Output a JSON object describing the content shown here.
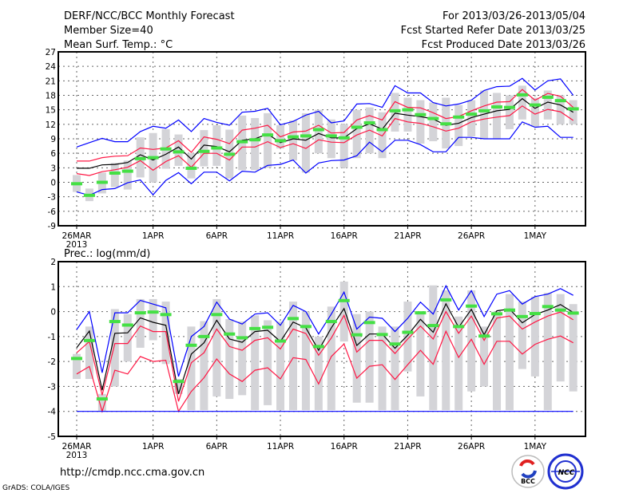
{
  "header": {
    "title": "DERF/NCC/BCC Monthly Forecast",
    "member_size": "Member Size=40",
    "variable": "Mean Surf. Temp.: °C",
    "period": "For 2013/03/26-2013/05/04",
    "started": "Fcst Started Refer Date 2013/03/25",
    "produced": "Fcst Produced Date 2013/03/26"
  },
  "footer": {
    "url": "http://cmdp.ncc.cma.gov.cn",
    "credit": "GrADS: COLA/IGES",
    "logo_bcc": "BCC",
    "logo_ncc": "NCC"
  },
  "colors": {
    "max_min": "#0000ff",
    "spread": "#ff1744",
    "mean": "#000000",
    "obs": "#44e044",
    "range": "#d4d4d8"
  },
  "chart_data": [
    {
      "type": "line",
      "title": "Mean Surf. Temp.: °C",
      "ylim": [
        -9,
        27
      ],
      "yticks": [
        27,
        24,
        21,
        18,
        15,
        12,
        9,
        6,
        3,
        0,
        -3,
        -6,
        -9
      ],
      "xtick_days": [
        0,
        6,
        11,
        16,
        21,
        26,
        31,
        36
      ],
      "xtick_labels": [
        "26MAR",
        "1APR",
        "6APR",
        "11APR",
        "16APR",
        "21APR",
        "26APR",
        "1MAY"
      ],
      "year_label": "2013",
      "days": 40,
      "grid": true,
      "series": [
        {
          "name": "ensemble max",
          "color": "#0000ff",
          "values": [
            7.3,
            8.2,
            9.1,
            8.4,
            8.4,
            10.5,
            11.6,
            11.2,
            12.9,
            10.5,
            13.2,
            12.4,
            11.8,
            14.5,
            14.7,
            15.3,
            11.9,
            12.6,
            13.9,
            14.7,
            12.3,
            12.7,
            16.2,
            16.3,
            15.5,
            20,
            18.5,
            18.5,
            16.5,
            15.8,
            16.2,
            17,
            19,
            19.8,
            19.9,
            21.5,
            19.1,
            21,
            21.4,
            18
          ]
        },
        {
          "name": "upper spread",
          "color": "#ff1744",
          "values": [
            4.4,
            4.4,
            5.1,
            5.4,
            5.5,
            7.1,
            6.8,
            7.1,
            8.6,
            6.2,
            9.4,
            8.9,
            8,
            10.8,
            11.2,
            11.8,
            9.4,
            10.4,
            10.6,
            11.8,
            10.2,
            10.3,
            12.9,
            13.8,
            12.9,
            16.7,
            15.5,
            15.4,
            14.4,
            13.2,
            13.6,
            14.8,
            15.8,
            16.6,
            16.7,
            19.2,
            17,
            18.4,
            17.8,
            15.5
          ]
        },
        {
          "name": "ensemble mean",
          "color": "#000000",
          "values": [
            2.9,
            2.9,
            3.6,
            3.7,
            4.1,
            5.7,
            4.6,
            5.8,
            7.3,
            4.8,
            7.7,
            7.4,
            6.3,
            8.7,
            9,
            10,
            8.2,
            9,
            8.7,
            10.1,
            9.2,
            9.2,
            11.1,
            12.1,
            11,
            14.3,
            13.9,
            13.6,
            13.1,
            11.8,
            12.2,
            13.4,
            14.1,
            14.8,
            15.1,
            17.3,
            15.3,
            16.6,
            16,
            14.5
          ]
        },
        {
          "name": "lower spread",
          "color": "#ff1744",
          "values": [
            1.8,
            1.4,
            2.2,
            2.6,
            3.1,
            4.5,
            2.5,
            4.3,
            5.5,
            3.1,
            6,
            6,
            4.6,
            7.3,
            7.3,
            8.4,
            7.2,
            8,
            7,
            8.8,
            8.3,
            8.2,
            9.8,
            10.8,
            9.6,
            13.2,
            12.5,
            12.2,
            11.5,
            10.6,
            11.2,
            12.5,
            13.1,
            13.5,
            13.8,
            15.8,
            14.1,
            15.1,
            14.6,
            12.8
          ]
        },
        {
          "name": "ensemble min",
          "color": "#0000ff",
          "values": [
            -2,
            -2.7,
            -1.5,
            -1.3,
            -0.1,
            0.5,
            -2.6,
            0.4,
            2,
            -0.3,
            2.1,
            2.1,
            0.3,
            2.3,
            2.1,
            3.5,
            3.7,
            4.6,
            1.9,
            4,
            4.5,
            4.6,
            5.5,
            8.3,
            6.3,
            8.7,
            8.7,
            7.8,
            6.3,
            6.3,
            9.3,
            9.3,
            9,
            9,
            9,
            12.5,
            11.4,
            11.6,
            9.3,
            9.3
          ]
        }
      ],
      "observed": [
        -0.3,
        -2.7,
        0,
        1.9,
        2.3,
        4.9,
        5.1,
        6.9,
        6.3,
        2.9,
        6.4,
        7.1,
        5.8,
        8.4,
        8.8,
        9.8,
        8.6,
        9.4,
        9.6,
        10.9,
        9.6,
        9.2,
        11.4,
        12.3,
        10.9,
        14.8,
        15,
        14,
        13.2,
        12.1,
        13.5,
        14.1,
        14.8,
        15.6,
        15.5,
        18.1,
        16,
        17.6,
        16.9,
        15.2
      ],
      "range_low": [
        -2,
        -3.9,
        -2.3,
        -1,
        -1.5,
        1,
        0,
        2.8,
        3.4,
        0.8,
        3.3,
        3.4,
        0.8,
        2.5,
        2.5,
        3,
        7,
        4.5,
        2,
        6,
        5,
        3,
        5,
        6,
        5,
        10.5,
        10.5,
        8,
        8.5,
        7,
        7.5,
        9.5,
        9,
        9,
        11,
        13,
        11.5,
        13,
        12,
        12
      ],
      "range_high": [
        1.5,
        -1.3,
        2,
        4,
        4.5,
        9.3,
        10.2,
        11,
        9.9,
        6,
        10.8,
        11.8,
        10.9,
        13.8,
        13.3,
        14.3,
        11.8,
        12.8,
        14.3,
        15,
        13,
        12,
        15,
        15.5,
        14.5,
        18.5,
        17.5,
        17,
        16.5,
        17.5,
        16,
        17,
        19,
        18.5,
        18,
        20,
        17.5,
        19,
        18,
        17
      ]
    },
    {
      "type": "line",
      "title": "Prec.: log(mm/d)",
      "ylim": [
        -5,
        2
      ],
      "yticks": [
        2,
        1,
        0,
        -1,
        -2,
        -3,
        -4,
        -5
      ],
      "xtick_days": [
        0,
        6,
        11,
        16,
        21,
        26,
        31,
        36
      ],
      "xtick_labels": [
        "26MAR",
        "1APR",
        "6APR",
        "11APR",
        "16APR",
        "21APR",
        "26APR",
        "1MAY"
      ],
      "year_label": "2013",
      "days": 40,
      "grid": true,
      "series": [
        {
          "name": "ensemble max",
          "color": "#0000ff",
          "values": [
            -0.72,
            0,
            -2.45,
            -0.05,
            -0.05,
            0.45,
            0.3,
            0.15,
            -2.6,
            -1,
            -0.6,
            0.38,
            -0.3,
            -0.5,
            -0.1,
            -0.05,
            -0.55,
            0.25,
            0,
            -0.9,
            -0.1,
            0.78,
            -0.7,
            -0.22,
            -0.27,
            -0.8,
            -0.27,
            0.38,
            -0.1,
            1.03,
            0.06,
            0.84,
            -0.2,
            0.7,
            0.84,
            0.3,
            0.6,
            0.7,
            0.92,
            0.65
          ]
        },
        {
          "name": "ensemble mean",
          "color": "#000000",
          "values": [
            -1.45,
            -0.78,
            -3.15,
            -0.87,
            -0.85,
            -0.25,
            -0.43,
            -0.55,
            -3.3,
            -1.7,
            -1.25,
            -0.35,
            -1.1,
            -1.23,
            -0.8,
            -0.75,
            -1.2,
            -0.42,
            -0.65,
            -1.55,
            -0.65,
            0.12,
            -1.36,
            -0.9,
            -0.9,
            -1.47,
            -0.95,
            -0.31,
            -0.83,
            0.31,
            -0.63,
            0.09,
            -0.93,
            0.03,
            0.1,
            -0.45,
            -0.12,
            0.06,
            0.28,
            -0.04
          ]
        },
        {
          "name": "upper spread",
          "color": "#ff1744",
          "values": [
            -1.65,
            -1.2,
            -3.35,
            -1.28,
            -1.28,
            -0.58,
            -0.8,
            -0.8,
            -3.6,
            -2.05,
            -1.65,
            -0.7,
            -1.4,
            -1.55,
            -1.15,
            -1.05,
            -1.5,
            -0.7,
            -0.88,
            -1.75,
            -1.06,
            -0.15,
            -1.62,
            -1.15,
            -1.15,
            -1.68,
            -1.1,
            -0.58,
            -1.1,
            0,
            -0.87,
            -0.18,
            -1.15,
            -0.26,
            -0.18,
            -0.7,
            -0.42,
            -0.18,
            -0.02,
            -0.33
          ]
        },
        {
          "name": "lower spread",
          "color": "#ff1744",
          "values": [
            -2.5,
            -2.2,
            -4,
            -2.35,
            -2.5,
            -1.8,
            -2,
            -1.95,
            -4,
            -3.2,
            -2.65,
            -1.9,
            -2.5,
            -2.8,
            -2.35,
            -2.25,
            -2.7,
            -1.85,
            -1.92,
            -2.9,
            -1.8,
            -1.3,
            -2.67,
            -2.19,
            -2.13,
            -2.72,
            -2.13,
            -1.55,
            -2.11,
            -0.79,
            -1.84,
            -1.11,
            -2.11,
            -1.19,
            -1.19,
            -1.7,
            -1.31,
            -1.11,
            -0.98,
            -1.25
          ]
        },
        {
          "name": "ensemble min",
          "color": "#0000ff",
          "values": [
            -4,
            -4,
            -4,
            -4,
            -4,
            -4,
            -4,
            -4,
            -4,
            -4,
            -4,
            -4,
            -4,
            -4,
            -4,
            -4,
            -4,
            -4,
            -4,
            -4,
            -4,
            -4,
            -4,
            -4,
            -4,
            -4,
            -4,
            -4,
            -4,
            -4,
            -4,
            -4,
            -4,
            -4,
            -4,
            -4,
            -4,
            -4,
            -4,
            -4
          ]
        }
      ],
      "observed": [
        -1.88,
        -1.16,
        -3.5,
        -0.4,
        -0.54,
        -0.05,
        -0.02,
        -0.12,
        -2.8,
        -1.35,
        -1,
        -0.12,
        -0.9,
        -1.05,
        -0.68,
        -0.63,
        -1.18,
        -0.28,
        -0.6,
        -1.4,
        -0.4,
        0.44,
        -0.93,
        -0.44,
        -0.92,
        -1.3,
        -0.83,
        -0.05,
        -0.56,
        0.47,
        -0.6,
        0.22,
        -0.98,
        -0.09,
        0.06,
        -0.2,
        -0.08,
        0.2,
        0.06,
        -0.06
      ],
      "range_low": [
        -2.7,
        -2.7,
        -4,
        -3,
        -2,
        -1.45,
        -1.15,
        -2.1,
        -3.3,
        -3.95,
        -3.95,
        -3.4,
        -3.5,
        -3.35,
        -3.95,
        -3.75,
        -3.95,
        -3.95,
        -3.95,
        -3.95,
        -3.95,
        -1.2,
        -3.65,
        -3.65,
        -3.95,
        -3.95,
        -2.4,
        -3.4,
        -3.95,
        -3.95,
        -3.95,
        -3.2,
        -3,
        -3.95,
        -3.95,
        -2.3,
        -2.6,
        -3.95,
        -2.8,
        -3.2
      ],
      "range_high": [
        -1.7,
        -0.6,
        -3.3,
        0.1,
        -0.1,
        0.5,
        0.5,
        0.4,
        -2.7,
        -0.6,
        -0.38,
        0.5,
        -0.3,
        -0.4,
        -0.15,
        -0.35,
        -0.4,
        0.4,
        0,
        -1,
        0.2,
        1.2,
        -0.1,
        0,
        -0.6,
        -0.6,
        0.4,
        -0.05,
        1.05,
        0.85,
        -0.2,
        0.85,
        -0.6,
        0,
        0.7,
        0.4,
        0.6,
        0.75,
        0.7,
        0.3
      ]
    }
  ]
}
